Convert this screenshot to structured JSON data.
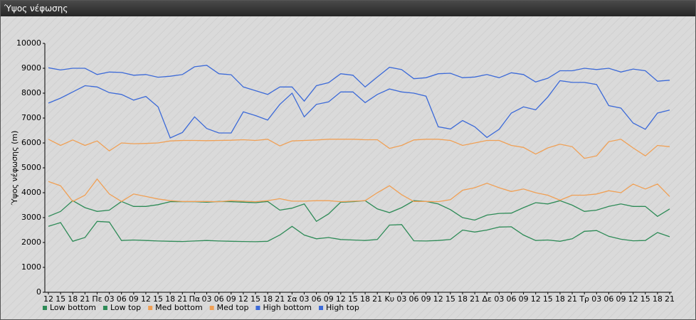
{
  "window": {
    "title": "Ύψος νέφωσης"
  },
  "chart_data": {
    "type": "line",
    "y_label": "Ύψος νέφωσης (m)",
    "categories": [
      "12",
      "15",
      "18",
      "21",
      "Πε",
      "03",
      "06",
      "09",
      "12",
      "15",
      "18",
      "21",
      "Πα",
      "03",
      "06",
      "09",
      "12",
      "15",
      "18",
      "21",
      "Σα",
      "03",
      "06",
      "09",
      "12",
      "15",
      "18",
      "21",
      "Κυ",
      "03",
      "06",
      "09",
      "12",
      "15",
      "18",
      "21",
      "Δε",
      "03",
      "06",
      "09",
      "12",
      "15",
      "18",
      "21",
      "Τρ",
      "03",
      "06",
      "09",
      "12",
      "15",
      "18",
      "21"
    ],
    "ylim": [
      0,
      10000
    ],
    "yticks": [
      0,
      1000,
      2000,
      3000,
      4000,
      5000,
      6000,
      7000,
      8000,
      9000,
      10000
    ],
    "grid": false,
    "legend": "bottom-left",
    "series": [
      {
        "name": "Low bottom",
        "color": "#2e8b57",
        "values": [
          2650,
          2800,
          2050,
          2200,
          2850,
          2820,
          2080,
          2100,
          2080,
          2060,
          2050,
          2040,
          2060,
          2080,
          2060,
          2050,
          2040,
          2030,
          2050,
          2300,
          2650,
          2300,
          2150,
          2200,
          2120,
          2100,
          2080,
          2120,
          2700,
          2720,
          2070,
          2060,
          2080,
          2120,
          2500,
          2420,
          2500,
          2620,
          2630,
          2300,
          2080,
          2100,
          2050,
          2150,
          2450,
          2480,
          2250,
          2130,
          2070,
          2080,
          2400,
          2230
        ]
      },
      {
        "name": "Low top",
        "color": "#2e8b57",
        "values": [
          3050,
          3250,
          3680,
          3400,
          3250,
          3300,
          3650,
          3450,
          3450,
          3520,
          3640,
          3640,
          3640,
          3620,
          3650,
          3640,
          3620,
          3600,
          3650,
          3300,
          3380,
          3550,
          2850,
          3150,
          3620,
          3640,
          3680,
          3350,
          3200,
          3400,
          3680,
          3650,
          3550,
          3320,
          3000,
          2900,
          3100,
          3170,
          3180,
          3400,
          3600,
          3550,
          3680,
          3500,
          3250,
          3300,
          3450,
          3550,
          3450,
          3450,
          3050,
          3350
        ]
      },
      {
        "name": "Med bottom",
        "color": "#f0a055",
        "values": [
          4450,
          4280,
          3650,
          3900,
          4550,
          3950,
          3650,
          3950,
          3850,
          3750,
          3680,
          3650,
          3650,
          3650,
          3640,
          3680,
          3660,
          3640,
          3680,
          3760,
          3660,
          3660,
          3680,
          3680,
          3640,
          3660,
          3680,
          4000,
          4280,
          3920,
          3650,
          3650,
          3640,
          3720,
          4100,
          4200,
          4380,
          4200,
          4050,
          4150,
          4000,
          3900,
          3700,
          3900,
          3900,
          3950,
          4080,
          4000,
          4350,
          4150,
          4350,
          3850
        ]
      },
      {
        "name": "Med top",
        "color": "#f0a055",
        "values": [
          6150,
          5900,
          6120,
          5900,
          6080,
          5680,
          6000,
          5970,
          5980,
          6000,
          6080,
          6100,
          6100,
          6090,
          6100,
          6110,
          6130,
          6100,
          6150,
          5880,
          6080,
          6100,
          6120,
          6150,
          6150,
          6150,
          6130,
          6130,
          5780,
          5900,
          6120,
          6150,
          6150,
          6100,
          5900,
          6000,
          6100,
          6100,
          5900,
          5820,
          5550,
          5800,
          5950,
          5850,
          5380,
          5480,
          6050,
          6150,
          5800,
          5480,
          5900,
          5850
        ]
      },
      {
        "name": "High bottom",
        "color": "#3c6ad8",
        "values": [
          7600,
          7800,
          8050,
          8300,
          8250,
          8020,
          7950,
          7720,
          7870,
          7450,
          6200,
          6420,
          7050,
          6580,
          6400,
          6400,
          7250,
          7100,
          6920,
          7550,
          8000,
          7050,
          7550,
          7650,
          8050,
          8050,
          7620,
          7950,
          8170,
          8050,
          8000,
          7880,
          6650,
          6560,
          6900,
          6650,
          6220,
          6550,
          7200,
          7450,
          7330,
          7850,
          8500,
          8430,
          8430,
          8350,
          7500,
          7400,
          6800,
          6550,
          7200,
          7320
        ]
      },
      {
        "name": "High top",
        "color": "#3c6ad8",
        "values": [
          9020,
          8930,
          9000,
          9000,
          8750,
          8850,
          8830,
          8720,
          8750,
          8640,
          8680,
          8750,
          9060,
          9120,
          8780,
          8740,
          8250,
          8100,
          7950,
          8250,
          8250,
          7680,
          8300,
          8420,
          8780,
          8720,
          8250,
          8650,
          9040,
          8950,
          8580,
          8620,
          8780,
          8800,
          8620,
          8650,
          8750,
          8620,
          8820,
          8750,
          8450,
          8600,
          8900,
          8900,
          9000,
          8950,
          9000,
          8850,
          8970,
          8900,
          8480,
          8520
        ]
      }
    ]
  }
}
